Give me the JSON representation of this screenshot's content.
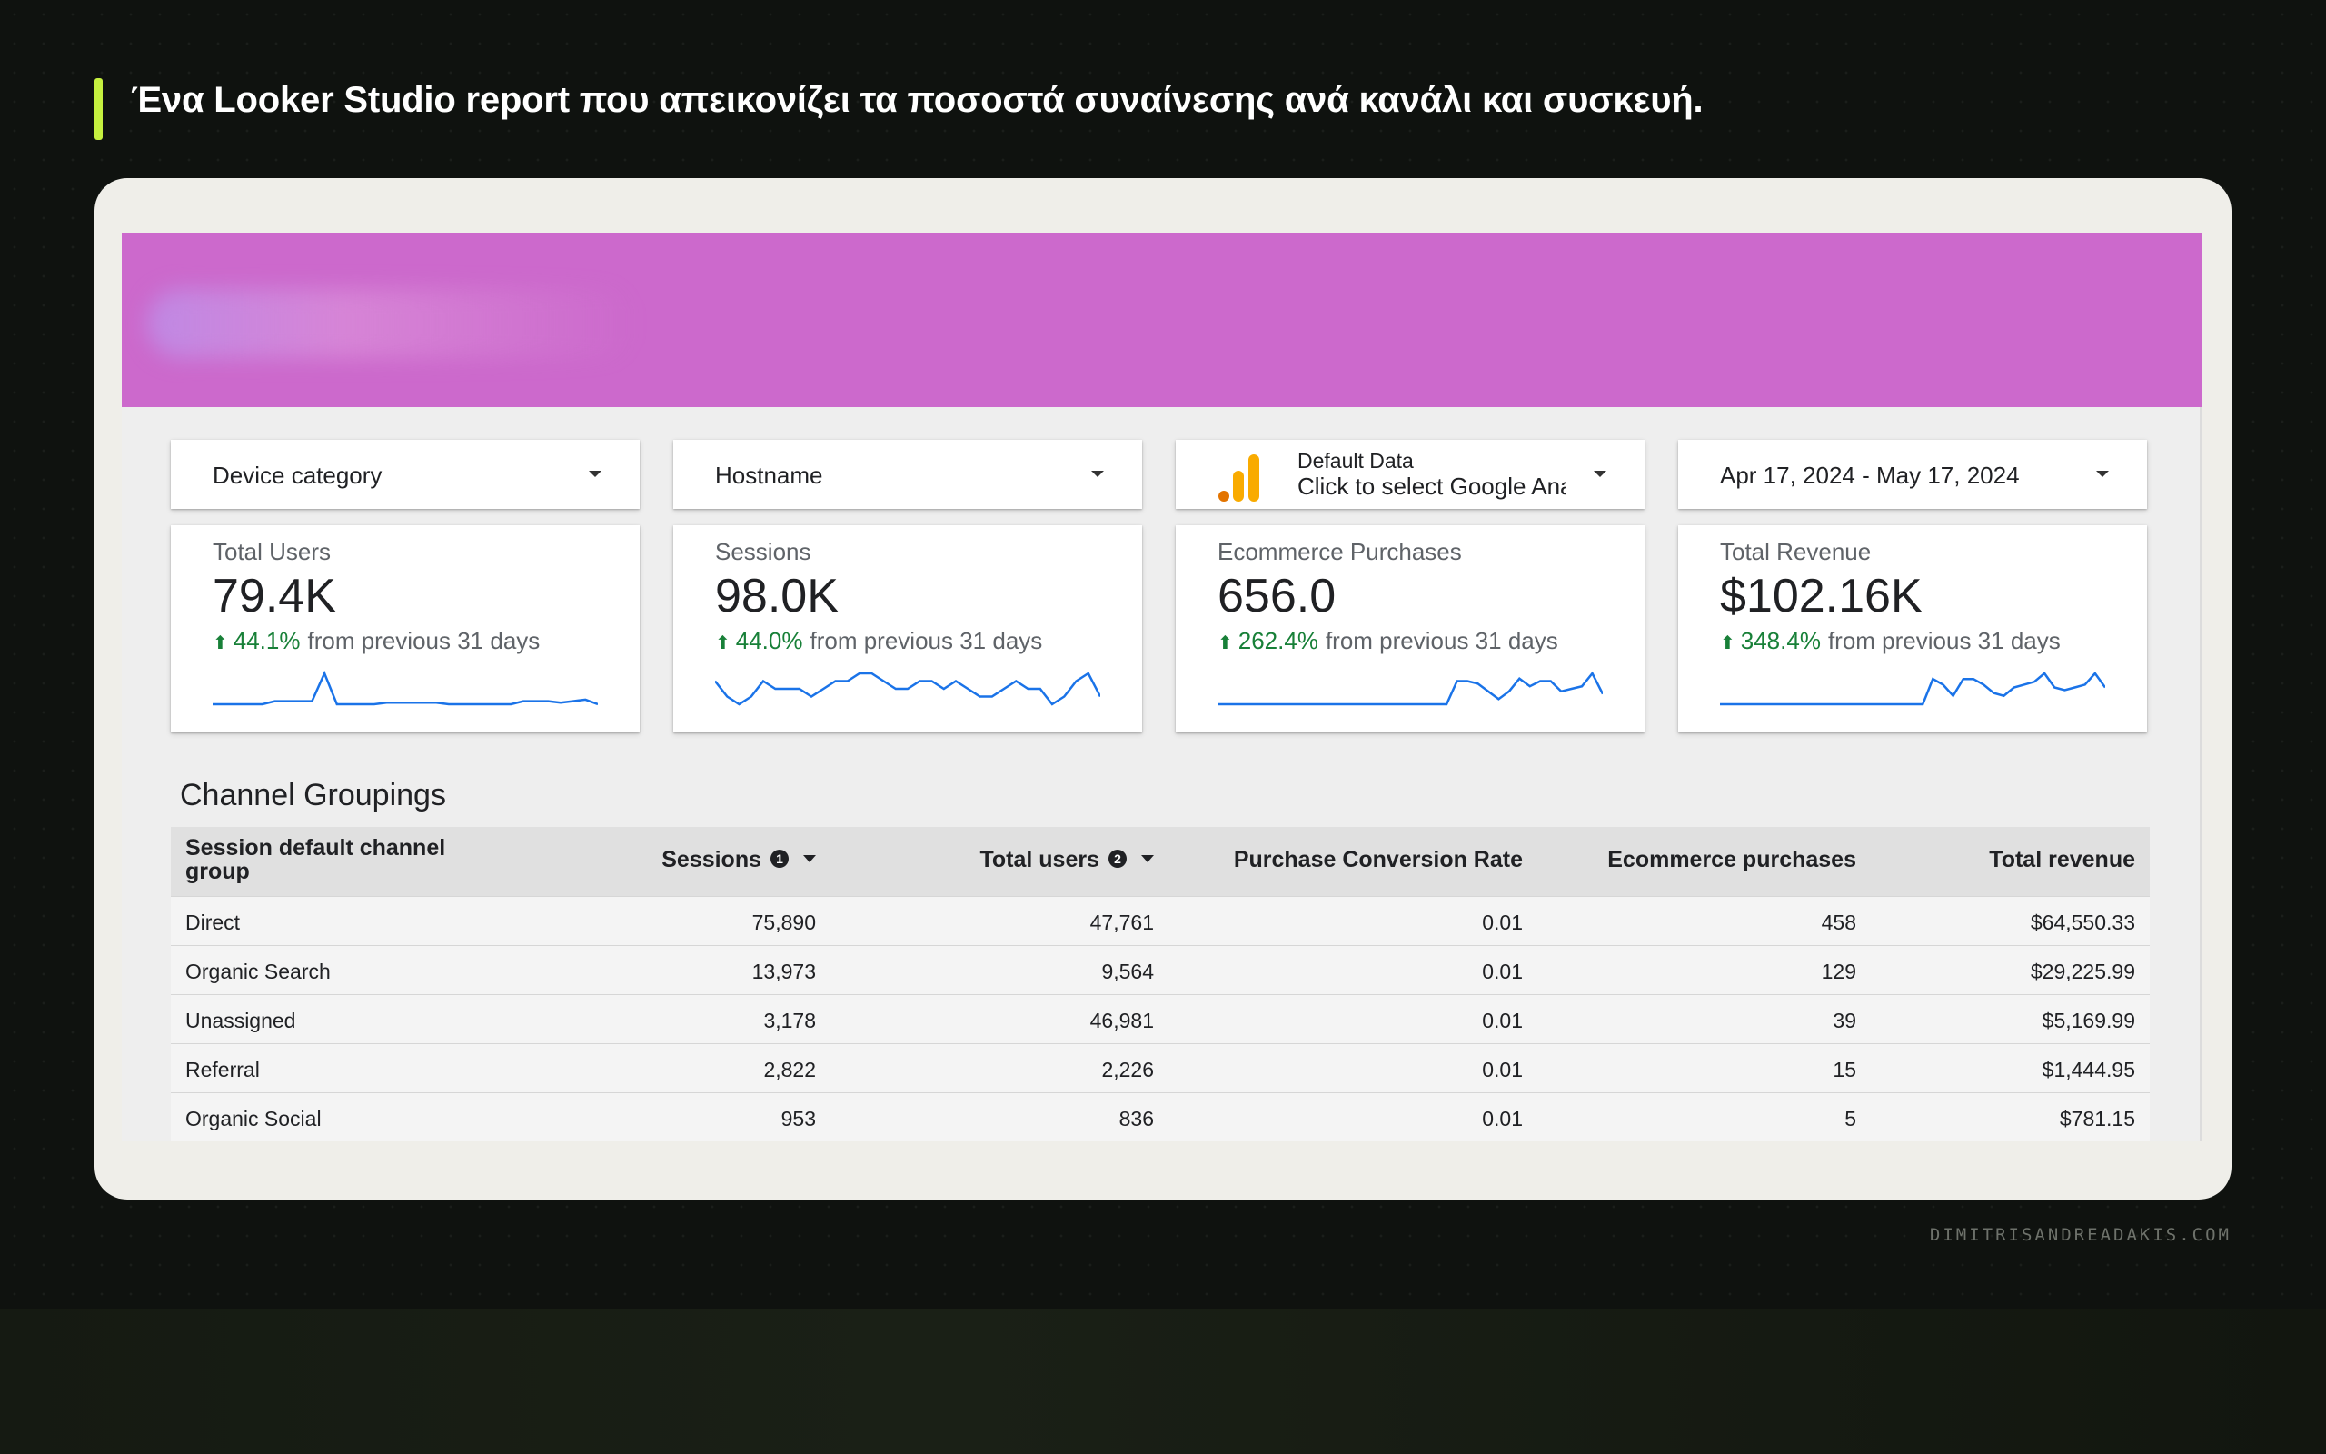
{
  "headline": "Ένα Looker Studio report που απεικονίζει τα ποσοστά συναίνεσης ανά κανάλι και συσκευή.",
  "credit": "DIMITRISANDREADAKIS.COM",
  "colors": {
    "accent_bar": "#c5f03f",
    "banner": "#cc69cc",
    "positive": "#188038",
    "sparkline": "#1a73e8"
  },
  "controls": {
    "device_category": "Device category",
    "hostname": "Hostname",
    "data_source": {
      "icon": "google-analytics-icon",
      "label": "Default Data",
      "value": "Click to select Google Analytics"
    },
    "date_range": "Apr 17, 2024 - May 17, 2024"
  },
  "kpis": [
    {
      "title": "Total Users",
      "value": "79.4K",
      "delta": "44.1%",
      "comparison": "from previous 31 days",
      "trend": [
        2,
        2,
        2,
        2,
        2,
        3,
        3,
        3,
        3,
        12,
        2,
        2,
        2,
        2,
        2.5,
        2.5,
        2.5,
        2.5,
        2.5,
        2,
        2,
        2,
        2,
        2,
        2,
        3,
        3,
        3,
        2.5,
        3,
        3.5,
        2
      ]
    },
    {
      "title": "Sessions",
      "value": "98.0K",
      "delta": "44.0%",
      "comparison": "from previous 31 days",
      "trend": [
        9,
        7,
        6,
        7,
        9,
        8,
        8,
        8,
        7,
        8,
        9,
        9,
        10,
        10,
        9,
        8,
        8,
        9,
        9,
        8,
        9,
        8,
        7,
        7,
        8,
        9,
        8,
        8,
        6,
        7,
        9,
        10,
        7
      ]
    },
    {
      "title": "Ecommerce Purchases",
      "value": "656.0",
      "delta": "262.4%",
      "comparison": "from previous 31 days",
      "trend": [
        1,
        1,
        1,
        1,
        1,
        1,
        1,
        1,
        1,
        1,
        1,
        1,
        1,
        1,
        1,
        1,
        1,
        1,
        1,
        1,
        1,
        1,
        1,
        10,
        10,
        9,
        6,
        3,
        6,
        11,
        8,
        10,
        10,
        6,
        7,
        8,
        13,
        5
      ]
    },
    {
      "title": "Total Revenue",
      "value": "$102.16K",
      "delta": "348.4%",
      "comparison": "from previous 31 days",
      "trend": [
        1,
        1,
        1,
        1,
        1,
        1,
        1,
        1,
        1,
        1,
        1,
        1,
        1,
        1,
        1,
        1,
        1,
        1,
        1,
        1,
        1,
        10,
        8,
        4,
        10,
        10,
        8,
        5,
        4,
        7,
        8,
        9,
        12,
        7,
        6,
        7,
        8,
        12,
        7
      ]
    }
  ],
  "channel_groupings": {
    "title": "Channel Groupings",
    "columns": [
      "Session default channel group",
      "Sessions",
      "Total users",
      "Purchase Conversion Rate",
      "Ecommerce purchases",
      "Total revenue"
    ],
    "info_badges": [
      "1",
      "2"
    ],
    "rows": [
      [
        "Direct",
        "75,890",
        "47,761",
        "0.01",
        "458",
        "$64,550.33"
      ],
      [
        "Organic Search",
        "13,973",
        "9,564",
        "0.01",
        "129",
        "$29,225.99"
      ],
      [
        "Unassigned",
        "3,178",
        "46,981",
        "0.01",
        "39",
        "$5,169.99"
      ],
      [
        "Referral",
        "2,822",
        "2,226",
        "0.01",
        "15",
        "$1,444.95"
      ],
      [
        "Organic Social",
        "953",
        "836",
        "0.01",
        "5",
        "$781.15"
      ]
    ]
  }
}
